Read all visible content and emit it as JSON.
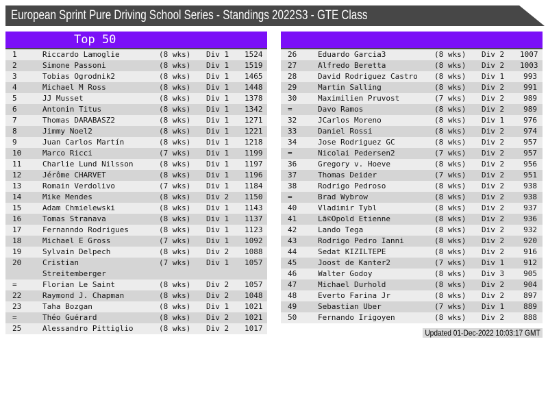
{
  "window": {
    "title": "European Sprint Pure Driving School Series - Standings 2022S3 - GTE Class"
  },
  "colors": {
    "accent_purple": "#7b10f7",
    "titlebar_gray": "#474747",
    "row_light": "#ececec",
    "row_dark": "#d5d5d5",
    "footer_bg": "#d9d9d9",
    "text": "#141414"
  },
  "tables": {
    "left": {
      "header": "Top 50",
      "rows": [
        {
          "pos": "1",
          "name": "Riccardo Lamoglie",
          "weeks": "(8 wks)",
          "division": "Div 1",
          "points": "1524"
        },
        {
          "pos": "2",
          "name": "Simone Passoni",
          "weeks": "(8 wks)",
          "division": "Div 1",
          "points": "1519"
        },
        {
          "pos": "3",
          "name": "Tobias Ogrodnik2",
          "weeks": "(8 wks)",
          "division": "Div 1",
          "points": "1465"
        },
        {
          "pos": "4",
          "name": "Michael M Ross",
          "weeks": "(8 wks)",
          "division": "Div 1",
          "points": "1448"
        },
        {
          "pos": "5",
          "name": "JJ Musset",
          "weeks": "(8 wks)",
          "division": "Div 1",
          "points": "1378"
        },
        {
          "pos": "6",
          "name": "Antonin Titus",
          "weeks": "(8 wks)",
          "division": "Div 1",
          "points": "1342"
        },
        {
          "pos": "7",
          "name": "Thomas DARABASZ2",
          "weeks": "(8 wks)",
          "division": "Div 1",
          "points": "1271"
        },
        {
          "pos": "8",
          "name": "Jimmy Noel2",
          "weeks": "(8 wks)",
          "division": "Div 1",
          "points": "1221"
        },
        {
          "pos": "9",
          "name": "Juan Carlos Martín",
          "weeks": "(8 wks)",
          "division": "Div 1",
          "points": "1218"
        },
        {
          "pos": "10",
          "name": "Marco Ricci",
          "weeks": "(7 wks)",
          "division": "Div 1",
          "points": "1199"
        },
        {
          "pos": "11",
          "name": "Charlie Lund Nilsson",
          "weeks": "(8 wks)",
          "division": "Div 1",
          "points": "1197"
        },
        {
          "pos": "12",
          "name": "Jérôme CHARVET",
          "weeks": "(8 wks)",
          "division": "Div 1",
          "points": "1196"
        },
        {
          "pos": "13",
          "name": "Romain Verdolivo",
          "weeks": "(7 wks)",
          "division": "Div 1",
          "points": "1184"
        },
        {
          "pos": "14",
          "name": "Mike Mendes",
          "weeks": "(8 wks)",
          "division": "Div 2",
          "points": "1150"
        },
        {
          "pos": "15",
          "name": "Adam Chmielewski",
          "weeks": "(8 wks)",
          "division": "Div 1",
          "points": "1143"
        },
        {
          "pos": "16",
          "name": "Tomas Stranava",
          "weeks": "(8 wks)",
          "division": "Div 1",
          "points": "1137"
        },
        {
          "pos": "17",
          "name": "Fernanndo Rodrigues",
          "weeks": "(8 wks)",
          "division": "Div 1",
          "points": "1123"
        },
        {
          "pos": "18",
          "name": "Michael E Gross",
          "weeks": "(7 wks)",
          "division": "Div 1",
          "points": "1092"
        },
        {
          "pos": "19",
          "name": "Sylvain Delpech",
          "weeks": "(8 wks)",
          "division": "Div 2",
          "points": "1088"
        },
        {
          "pos": "20",
          "name": "Cristian Streitemberger",
          "weeks": "(7 wks)",
          "division": "Div 1",
          "points": "1057",
          "wrap": true
        },
        {
          "pos": "=",
          "name": "Florian Le Saint",
          "weeks": "(8 wks)",
          "division": "Div 2",
          "points": "1057"
        },
        {
          "pos": "22",
          "name": "Raymond J. Chapman",
          "weeks": "(8 wks)",
          "division": "Div 2",
          "points": "1048"
        },
        {
          "pos": "23",
          "name": "Taha Bozgan",
          "weeks": "(8 wks)",
          "division": "Div 1",
          "points": "1021"
        },
        {
          "pos": "=",
          "name": "Théo Guérard",
          "weeks": "(8 wks)",
          "division": "Div 2",
          "points": "1021"
        },
        {
          "pos": "25",
          "name": "Alessandro Pittiglio",
          "weeks": "(8 wks)",
          "division": "Div 2",
          "points": "1017"
        }
      ]
    },
    "right": {
      "header": "",
      "rows": [
        {
          "pos": "26",
          "name": "Eduardo Garcia3",
          "weeks": "(8 wks)",
          "division": "Div 2",
          "points": "1007"
        },
        {
          "pos": "27",
          "name": "Alfredo Beretta",
          "weeks": "(8 wks)",
          "division": "Div 2",
          "points": "1003"
        },
        {
          "pos": "28",
          "name": "David Rodriguez Castro",
          "weeks": "(8 wks)",
          "division": "Div 1",
          "points": "993"
        },
        {
          "pos": "29",
          "name": "Martin Salling",
          "weeks": "(8 wks)",
          "division": "Div 2",
          "points": "991"
        },
        {
          "pos": "30",
          "name": "Maximilien Pruvost",
          "weeks": "(7 wks)",
          "division": "Div 2",
          "points": "989"
        },
        {
          "pos": "=",
          "name": "Davo Ramos",
          "weeks": "(8 wks)",
          "division": "Div 2",
          "points": "989"
        },
        {
          "pos": "32",
          "name": "JCarlos Moreno",
          "weeks": "(8 wks)",
          "division": "Div 1",
          "points": "976"
        },
        {
          "pos": "33",
          "name": "Daniel Rossi",
          "weeks": "(8 wks)",
          "division": "Div 2",
          "points": "974"
        },
        {
          "pos": "34",
          "name": "Jose Rodriguez GC",
          "weeks": "(8 wks)",
          "division": "Div 2",
          "points": "957"
        },
        {
          "pos": "=",
          "name": "Nicolai Pedersen2",
          "weeks": "(7 wks)",
          "division": "Div 2",
          "points": "957"
        },
        {
          "pos": "36",
          "name": "Gregory v. Hoeve",
          "weeks": "(8 wks)",
          "division": "Div 2",
          "points": "956"
        },
        {
          "pos": "37",
          "name": "Thomas Deider",
          "weeks": "(7 wks)",
          "division": "Div 2",
          "points": "951"
        },
        {
          "pos": "38",
          "name": "Rodrigo Pedroso",
          "weeks": "(8 wks)",
          "division": "Div 2",
          "points": "938"
        },
        {
          "pos": "=",
          "name": "Brad Wybrow",
          "weeks": "(8 wks)",
          "division": "Div 2",
          "points": "938"
        },
        {
          "pos": "40",
          "name": "Vladimir Tybl",
          "weeks": "(8 wks)",
          "division": "Div 2",
          "points": "937"
        },
        {
          "pos": "41",
          "name": "Lã©Opold Etienne",
          "weeks": "(8 wks)",
          "division": "Div 2",
          "points": "936"
        },
        {
          "pos": "42",
          "name": "Lando Tega",
          "weeks": "(8 wks)",
          "division": "Div 2",
          "points": "932"
        },
        {
          "pos": "43",
          "name": "Rodrigo Pedro Ianni",
          "weeks": "(8 wks)",
          "division": "Div 2",
          "points": "920"
        },
        {
          "pos": "44",
          "name": "Sedat KIZILTEPE",
          "weeks": "(8 wks)",
          "division": "Div 2",
          "points": "916"
        },
        {
          "pos": "45",
          "name": "Joost de Kanter2",
          "weeks": "(7 wks)",
          "division": "Div 1",
          "points": "912"
        },
        {
          "pos": "46",
          "name": "Walter Godoy",
          "weeks": "(8 wks)",
          "division": "Div 3",
          "points": "905"
        },
        {
          "pos": "47",
          "name": "Michael Durhold",
          "weeks": "(8 wks)",
          "division": "Div 2",
          "points": "904"
        },
        {
          "pos": "48",
          "name": "Everto Farina Jr",
          "weeks": "(8 wks)",
          "division": "Div 2",
          "points": "897"
        },
        {
          "pos": "49",
          "name": "Sebastian Uber",
          "weeks": "(7 wks)",
          "division": "Div 1",
          "points": "889"
        },
        {
          "pos": "50",
          "name": "Fernando Irigoyen",
          "weeks": "(8 wks)",
          "division": "Div 2",
          "points": "888"
        }
      ]
    }
  },
  "footer": {
    "updated": "Updated 01-Dec-2022 10:03:17 GMT"
  }
}
